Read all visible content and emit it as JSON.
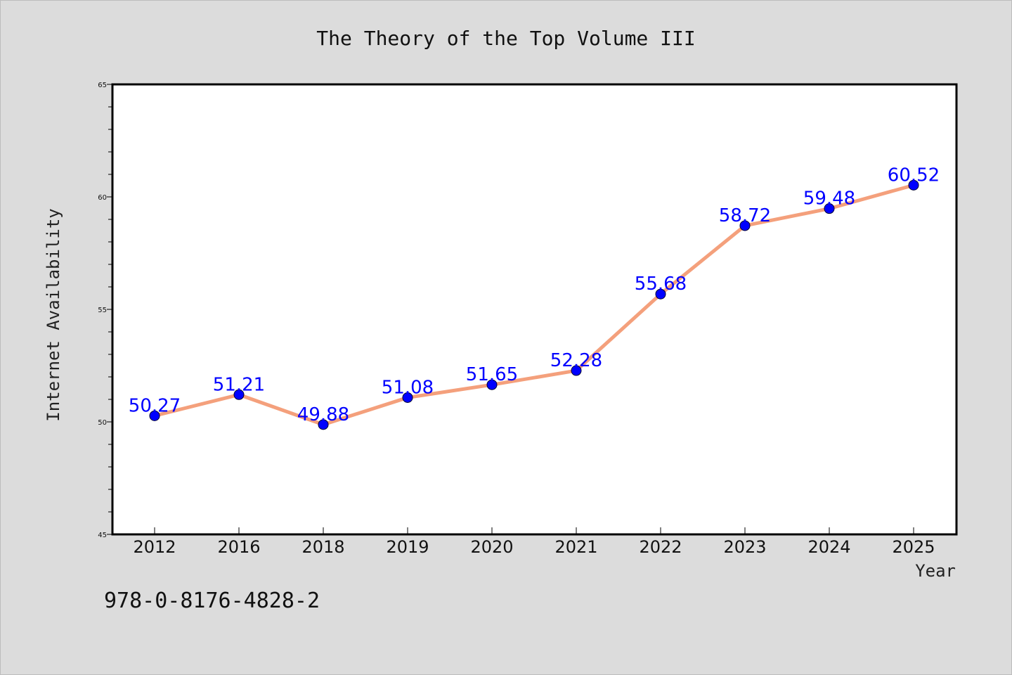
{
  "chart_data": {
    "type": "line",
    "title": "The Theory of the Top Volume III",
    "xlabel": "Year",
    "ylabel": "Internet Availability",
    "categories": [
      "2012",
      "2016",
      "2018",
      "2019",
      "2020",
      "2021",
      "2022",
      "2023",
      "2024",
      "2025"
    ],
    "series": [
      {
        "values": [
          50.27,
          51.21,
          49.88,
          51.08,
          51.65,
          52.28,
          55.68,
          58.72,
          59.48,
          60.52
        ],
        "labels": [
          "50.27",
          "51.21",
          "49.88",
          "51.08",
          "51.65",
          "52.28",
          "55.68",
          "58.72",
          "59.48",
          "60.52"
        ],
        "line_color": "#f4a07c",
        "marker_color": "#0000ff"
      }
    ],
    "ylim": [
      45,
      65
    ],
    "yticks": [
      "45",
      "50",
      "55",
      "60",
      "65"
    ],
    "grid": false,
    "legend": "none"
  },
  "footer": {
    "isbn": "978-0-8176-4828-2"
  }
}
